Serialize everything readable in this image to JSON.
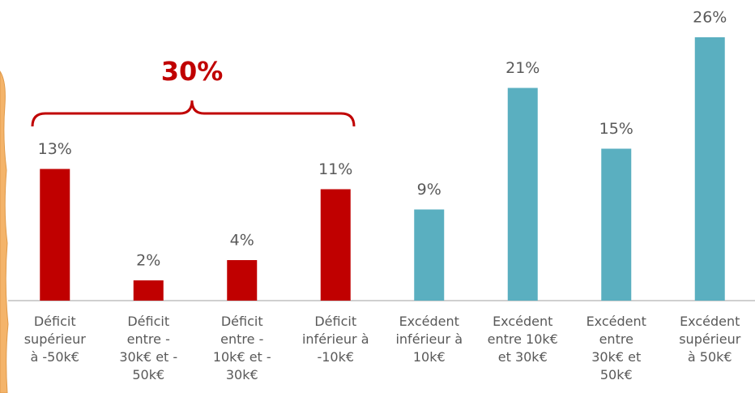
{
  "chart_data": {
    "type": "bar",
    "categories": [
      "Déficit\nsupérieur\nà -50k€",
      "Déficit\nentre -\n30k€ et -\n50k€",
      "Déficit\nentre -\n10k€ et -\n30k€",
      "Déficit\ninférieur à\n-10k€",
      "Excédent\ninférieur à\n10k€",
      "Excédent\nentre 10k€\net 30k€",
      "Excédent\nentre\n30k€ et\n50k€",
      "Excédent\nsupérieur\nà 50k€"
    ],
    "values": [
      13,
      2,
      4,
      11,
      9,
      21,
      15,
      26
    ],
    "value_labels": [
      "13%",
      "2%",
      "4%",
      "11%",
      "9%",
      "21%",
      "15%",
      "26%"
    ],
    "colors": [
      "#c00000",
      "#c00000",
      "#c00000",
      "#c00000",
      "#5aafc0",
      "#5aafc0",
      "#5aafc0",
      "#5aafc0"
    ],
    "ylim": [
      0,
      28
    ],
    "annotation": "30%"
  }
}
